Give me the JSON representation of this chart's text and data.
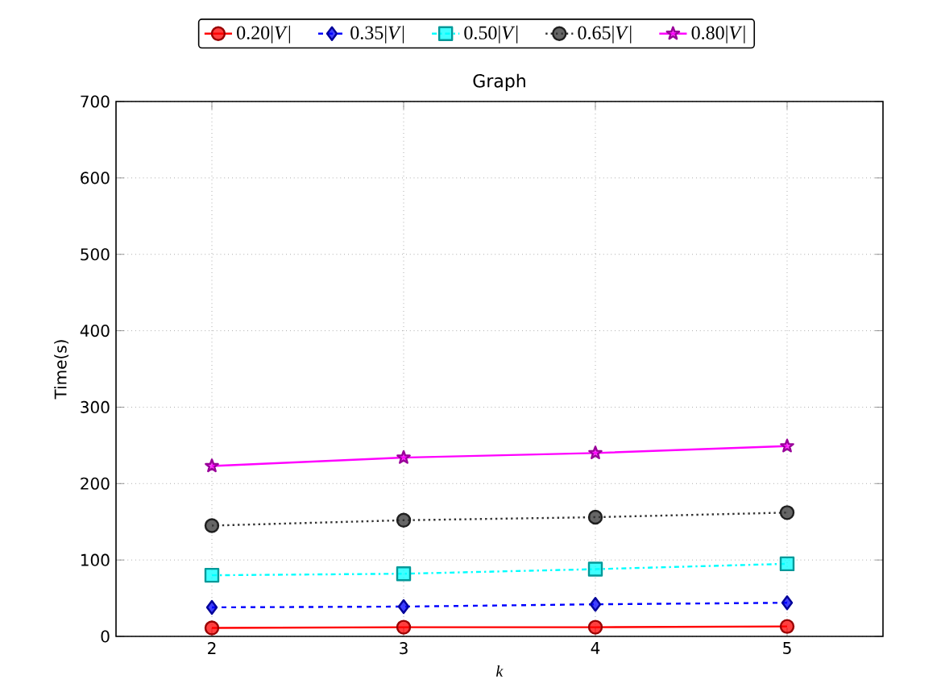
{
  "chart_data": {
    "type": "line",
    "title": "Graph",
    "xlabel": "*k*",
    "ylabel": "Time(s)",
    "x": [
      2,
      3,
      4,
      5
    ],
    "xlim": [
      1.5,
      5.5
    ],
    "xticks": [
      2,
      3,
      4,
      5
    ],
    "ylim": [
      0,
      700
    ],
    "yticks": [
      0,
      100,
      200,
      300,
      400,
      500,
      600,
      700
    ],
    "grid": true,
    "legend": "top",
    "series": [
      {
        "name": "0.20|*V*|",
        "color": "#ff0000",
        "marker": "circle",
        "line_style": "solid",
        "values": [
          11,
          12,
          12,
          13
        ]
      },
      {
        "name": "0.35|*V*|",
        "color": "#0000ff",
        "marker": "diamond",
        "line_style": "dashed",
        "values": [
          38,
          39,
          42,
          44
        ]
      },
      {
        "name": "0.50|*V*|",
        "color": "#00ffff",
        "marker": "square",
        "line_style": "dashdot",
        "values": [
          80,
          82,
          88,
          95
        ]
      },
      {
        "name": "0.65|*V*|",
        "color": "#333333",
        "marker": "circle",
        "line_style": "dotted",
        "values": [
          145,
          152,
          156,
          162
        ]
      },
      {
        "name": "0.80|*V*|",
        "color": "#ff00ff",
        "marker": "star",
        "line_style": "solid",
        "values": [
          223,
          234,
          240,
          249
        ]
      }
    ]
  }
}
